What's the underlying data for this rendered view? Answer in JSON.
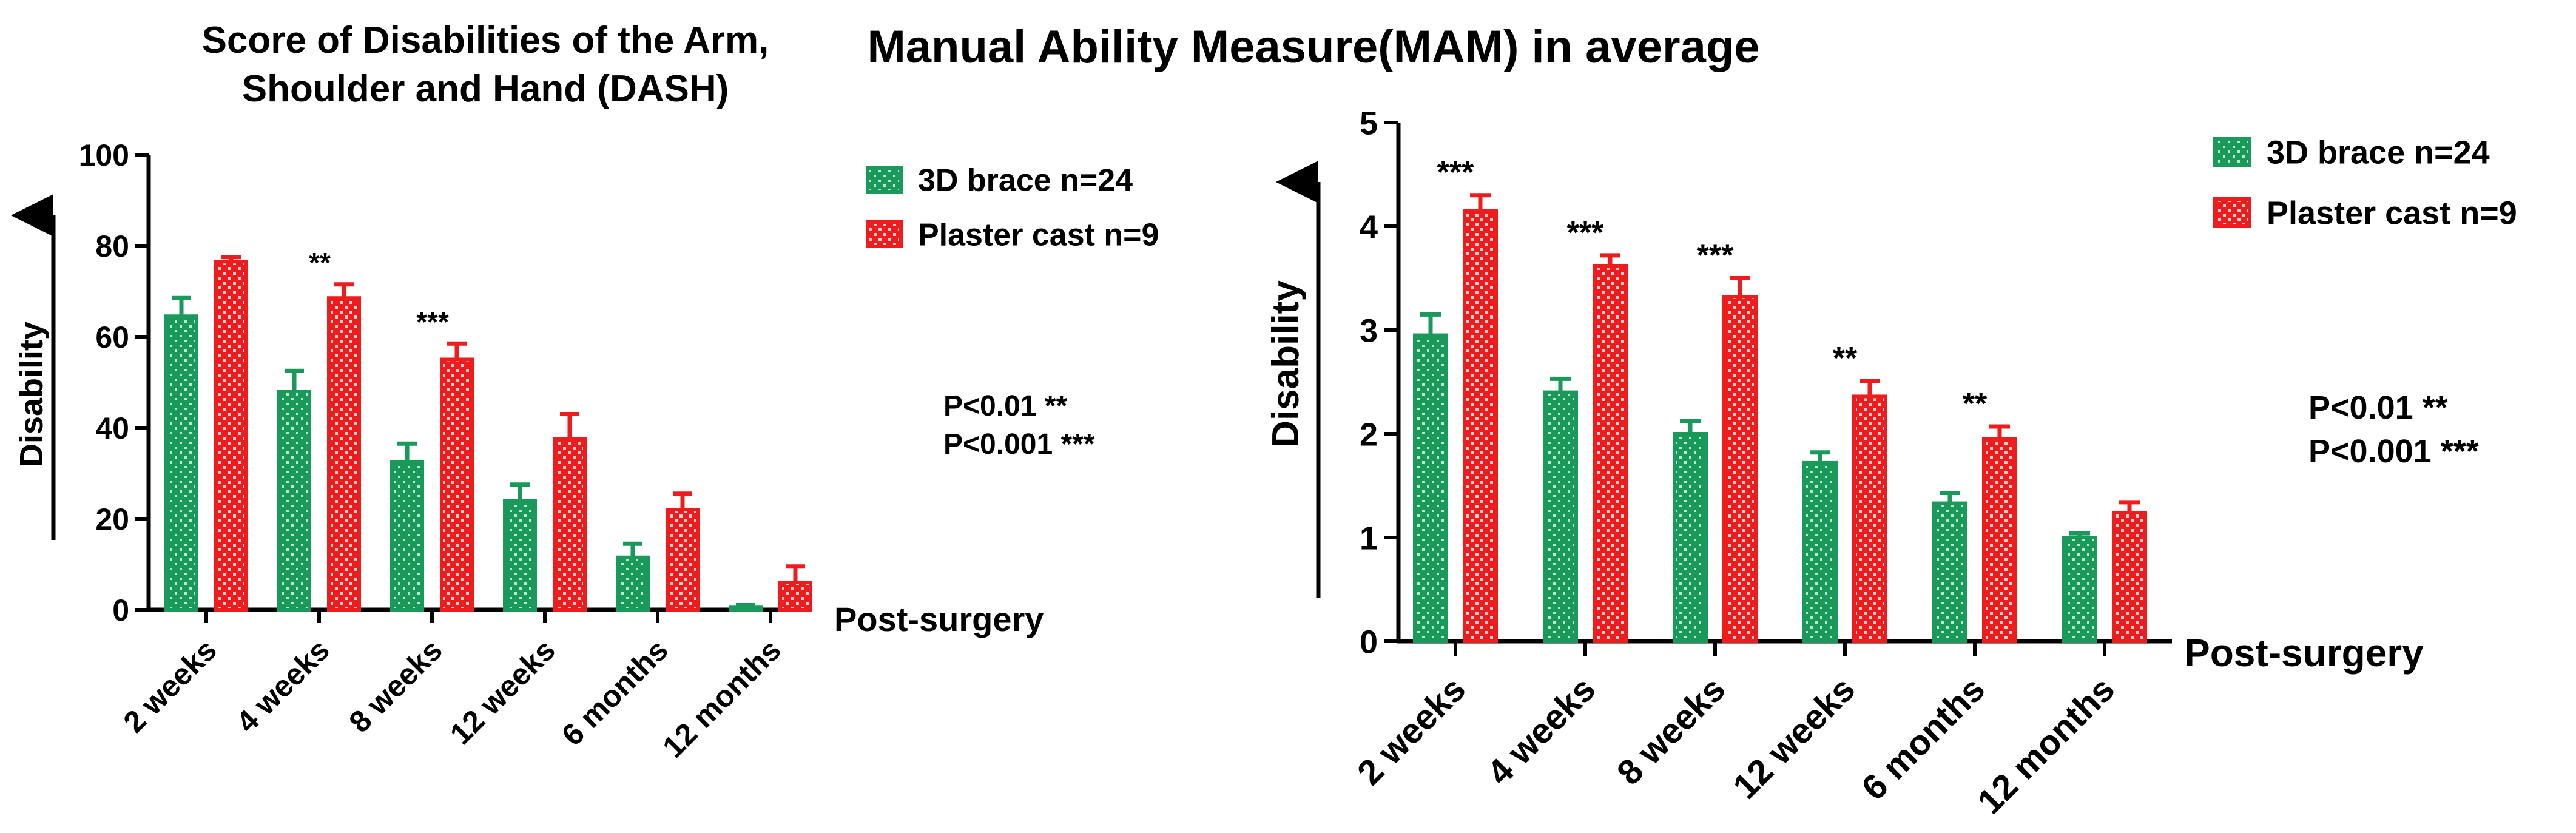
{
  "colors": {
    "brace": "#1a9a5a",
    "brace_pattern": "#bfe6cf",
    "cast": "#ee1c1c",
    "cast_pattern": "#ffd0d0",
    "axis": "#000000"
  },
  "chart_data": [
    {
      "type": "bar",
      "title": "Score of Disabilities of the Arm, Shoulder and Hand (DASH)",
      "title_lines": [
        "Score of Disabilities of the Arm,",
        "Shoulder and Hand (DASH)"
      ],
      "ylabel": "Disability",
      "xlabel": "Post-surgery",
      "ylim": [
        0,
        100
      ],
      "yticks": [
        "0",
        "20",
        "40",
        "60",
        "80",
        "100"
      ],
      "categories": [
        "2 weeks",
        "4 weeks",
        "8 weeks",
        "12 weeks",
        "6 months",
        "12 months"
      ],
      "series": [
        {
          "name": "3D brace n=24",
          "values": [
            64.5,
            48,
            32.5,
            24,
            11.5,
            0.5
          ],
          "errors": [
            4,
            4.5,
            4,
            3.5,
            3,
            0.5
          ]
        },
        {
          "name": "Plaster cast n=9",
          "values": [
            76.5,
            68.5,
            55,
            37.5,
            22,
            6
          ],
          "errors": [
            1,
            3,
            3.5,
            5.5,
            3.5,
            3.5
          ]
        }
      ],
      "significance": [
        "",
        "**",
        "***",
        "",
        "",
        ""
      ],
      "annotations": [
        "P<0.01 **",
        "P<0.001 ***"
      ],
      "legend_position": "top-right"
    },
    {
      "type": "bar",
      "title": "Manual Ability Measure(MAM) in average",
      "title_lines": [
        "Manual Ability Measure(MAM) in average"
      ],
      "ylabel": "Disability",
      "xlabel": "Post-surgery",
      "ylim": [
        0,
        5
      ],
      "yticks": [
        "0",
        "1",
        "2",
        "3",
        "4",
        "5"
      ],
      "categories": [
        "2 weeks",
        "4 weeks",
        "8 weeks",
        "12 weeks",
        "6 months",
        "12 months"
      ],
      "series": [
        {
          "name": "3D brace n=24",
          "values": [
            2.95,
            2.4,
            2.0,
            1.72,
            1.33,
            1.0
          ],
          "errors": [
            0.2,
            0.13,
            0.12,
            0.1,
            0.1,
            0.04
          ]
        },
        {
          "name": "Plaster cast n=9",
          "values": [
            4.15,
            3.62,
            3.32,
            2.36,
            1.95,
            1.24
          ],
          "errors": [
            0.15,
            0.1,
            0.18,
            0.15,
            0.12,
            0.1
          ]
        }
      ],
      "significance": [
        "***",
        "***",
        "***",
        "**",
        "**",
        ""
      ],
      "annotations": [
        "P<0.01 **",
        "P<0.001 ***"
      ],
      "legend_position": "top-right"
    }
  ]
}
